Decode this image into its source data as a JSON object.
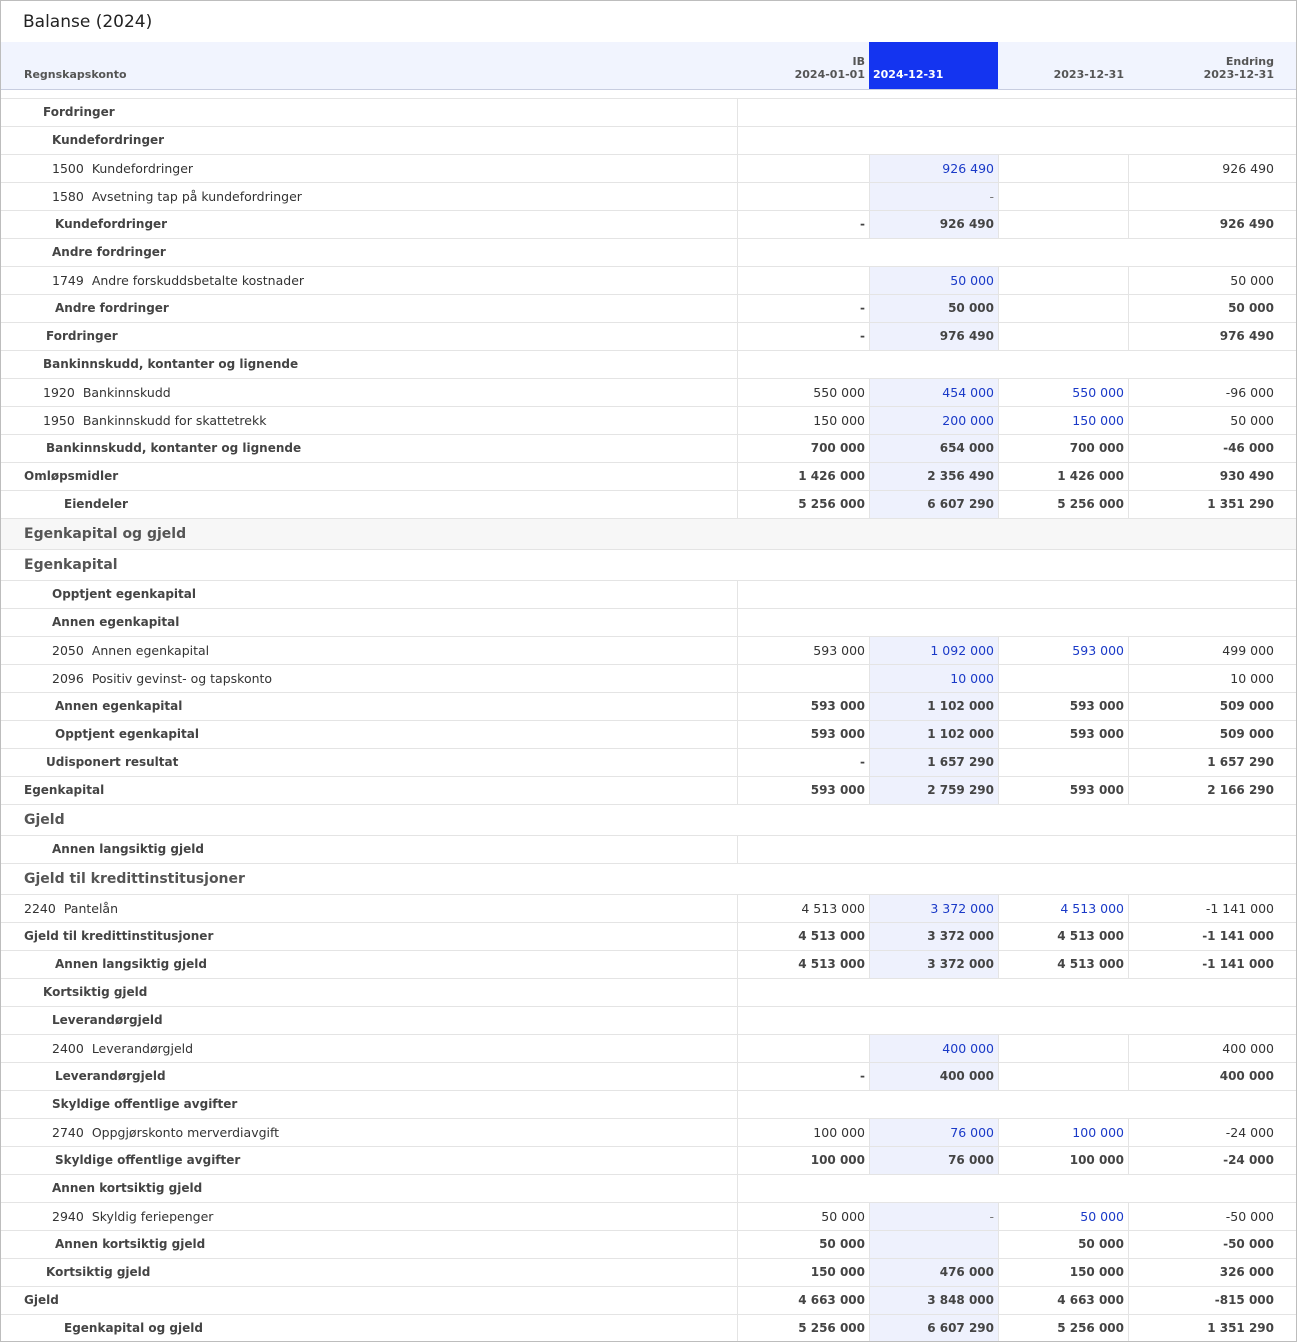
{
  "title": "Balanse (2024)",
  "header": {
    "columns": [
      [
        "Regnskapskonto"
      ],
      [
        "IB",
        "2024-01-01"
      ],
      [
        "2024-12-31"
      ],
      [
        "2023-12-31"
      ],
      [
        "Endring",
        "2023-12-31"
      ]
    ]
  },
  "rows": [
    {
      "kind": "group",
      "level": 2,
      "label": "Fordringer"
    },
    {
      "kind": "group",
      "level": 3,
      "label": "Kundefordringer"
    },
    {
      "kind": "account",
      "level": 3,
      "account": "1500",
      "label": "Kundefordringer",
      "values": [
        null,
        "926 490",
        null,
        "926 490"
      ]
    },
    {
      "kind": "account",
      "level": 3,
      "account": "1580",
      "label": "Avsetning tap på kundefordringer",
      "values": [
        null,
        "-",
        null,
        null
      ]
    },
    {
      "kind": "total",
      "level": 3,
      "label": "Kundefordringer",
      "values": [
        "-",
        "926 490",
        null,
        "926 490"
      ]
    },
    {
      "kind": "group",
      "level": 3,
      "label": "Andre fordringer"
    },
    {
      "kind": "account",
      "level": 3,
      "account": "1749",
      "label": "Andre forskuddsbetalte kostnader",
      "values": [
        null,
        "50 000",
        null,
        "50 000"
      ]
    },
    {
      "kind": "total",
      "level": 3,
      "label": "Andre fordringer",
      "values": [
        "-",
        "50 000",
        null,
        "50 000"
      ]
    },
    {
      "kind": "total",
      "level": 2,
      "label": "Fordringer",
      "values": [
        "-",
        "976 490",
        null,
        "976 490"
      ]
    },
    {
      "kind": "group",
      "level": 2,
      "label": "Bankinnskudd, kontanter og lignende"
    },
    {
      "kind": "account",
      "level": 2,
      "account": "1920",
      "label": "Bankinnskudd",
      "values": [
        "550 000",
        "454 000",
        "550 000",
        "-96 000"
      ]
    },
    {
      "kind": "account",
      "level": 2,
      "account": "1950",
      "label": "Bankinnskudd for skattetrekk",
      "values": [
        "150 000",
        "200 000",
        "150 000",
        "50 000"
      ]
    },
    {
      "kind": "total",
      "level": 2,
      "label": "Bankinnskudd, kontanter og lignende",
      "values": [
        "700 000",
        "654 000",
        "700 000",
        "-46 000"
      ]
    },
    {
      "kind": "total",
      "level": 1,
      "label": "Omløpsmidler",
      "values": [
        "1 426 000",
        "2 356 490",
        "1 426 000",
        "930 490"
      ]
    },
    {
      "kind": "total",
      "level": 0,
      "label": "Eiendeler",
      "values": [
        "5 256 000",
        "6 607 290",
        "5 256 000",
        "1 351 290"
      ]
    },
    {
      "kind": "section",
      "label": "Egenkapital og gjeld"
    },
    {
      "kind": "heading",
      "label": "Egenkapital"
    },
    {
      "kind": "group",
      "level": 3,
      "label": "Opptjent egenkapital"
    },
    {
      "kind": "group",
      "level": 3,
      "label": "Annen egenkapital"
    },
    {
      "kind": "account",
      "level": 3,
      "account": "2050",
      "label": "Annen egenkapital",
      "values": [
        "593 000",
        "1 092 000",
        "593 000",
        "499 000"
      ]
    },
    {
      "kind": "account",
      "level": 3,
      "account": "2096",
      "label": "Positiv gevinst- og tapskonto",
      "values": [
        null,
        "10 000",
        null,
        "10 000"
      ]
    },
    {
      "kind": "total",
      "level": 3,
      "label": "Annen egenkapital",
      "values": [
        "593 000",
        "1 102 000",
        "593 000",
        "509 000"
      ]
    },
    {
      "kind": "total",
      "level": 3,
      "label": "Opptjent egenkapital",
      "values": [
        "593 000",
        "1 102 000",
        "593 000",
        "509 000"
      ]
    },
    {
      "kind": "total",
      "level": 2,
      "label": "Udisponert resultat",
      "values": [
        "-",
        "1 657 290",
        null,
        "1 657 290"
      ]
    },
    {
      "kind": "total",
      "level": 1,
      "label": "Egenkapital",
      "values": [
        "593 000",
        "2 759 290",
        "593 000",
        "2 166 290"
      ]
    },
    {
      "kind": "heading",
      "label": "Gjeld"
    },
    {
      "kind": "group",
      "level": 3,
      "label": "Annen langsiktig gjeld"
    },
    {
      "kind": "heading",
      "label": "Gjeld til kredittinstitusjoner"
    },
    {
      "kind": "account",
      "level": 1,
      "account": "2240",
      "label": "Pantelån",
      "values": [
        "4 513 000",
        "3 372 000",
        "4 513 000",
        "-1 141 000"
      ]
    },
    {
      "kind": "total",
      "level": 1,
      "label": "Gjeld til kredittinstitusjoner",
      "values": [
        "4 513 000",
        "3 372 000",
        "4 513 000",
        "-1 141 000"
      ]
    },
    {
      "kind": "total",
      "level": 3,
      "label": "Annen langsiktig gjeld",
      "values": [
        "4 513 000",
        "3 372 000",
        "4 513 000",
        "-1 141 000"
      ]
    },
    {
      "kind": "group",
      "level": 2,
      "label": "Kortsiktig gjeld"
    },
    {
      "kind": "group",
      "level": 3,
      "label": "Leverandørgjeld"
    },
    {
      "kind": "account",
      "level": 3,
      "account": "2400",
      "label": "Leverandørgjeld",
      "values": [
        null,
        "400 000",
        null,
        "400 000"
      ]
    },
    {
      "kind": "total",
      "level": 3,
      "label": "Leverandørgjeld",
      "values": [
        "-",
        "400 000",
        null,
        "400 000"
      ]
    },
    {
      "kind": "group",
      "level": 3,
      "label": "Skyldige offentlige avgifter"
    },
    {
      "kind": "account",
      "level": 3,
      "account": "2740",
      "label": "Oppgjørskonto merverdiavgift",
      "values": [
        "100 000",
        "76 000",
        "100 000",
        "-24 000"
      ]
    },
    {
      "kind": "total",
      "level": 3,
      "label": "Skyldige offentlige avgifter",
      "values": [
        "100 000",
        "76 000",
        "100 000",
        "-24 000"
      ]
    },
    {
      "kind": "group",
      "level": 3,
      "label": "Annen kortsiktig gjeld"
    },
    {
      "kind": "account",
      "level": 3,
      "account": "2940",
      "label": "Skyldig feriepenger",
      "values": [
        "50 000",
        "-",
        "50 000",
        "-50 000"
      ]
    },
    {
      "kind": "total",
      "level": 3,
      "label": "Annen kortsiktig gjeld",
      "values": [
        "50 000",
        null,
        "50 000",
        "-50 000"
      ]
    },
    {
      "kind": "total",
      "level": 2,
      "label": "Kortsiktig gjeld",
      "values": [
        "150 000",
        "476 000",
        "150 000",
        "326 000"
      ]
    },
    {
      "kind": "total",
      "level": 1,
      "label": "Gjeld",
      "values": [
        "4 663 000",
        "3 848 000",
        "4 663 000",
        "-815 000"
      ]
    },
    {
      "kind": "total",
      "level": 0,
      "label": "Egenkapital og gjeld",
      "values": [
        "5 256 000",
        "6 607 290",
        "5 256 000",
        "1 351 290"
      ]
    }
  ]
}
